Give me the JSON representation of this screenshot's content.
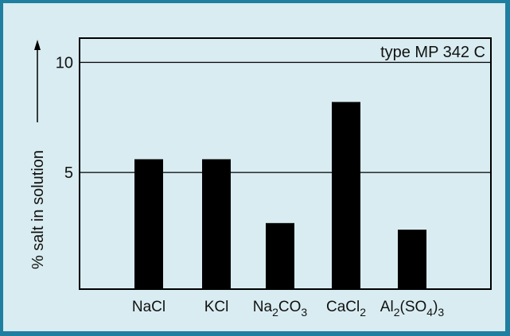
{
  "chart_data": {
    "type": "bar",
    "categories": [
      "NaCl",
      "KCl",
      "Na2CO3",
      "CaCl2",
      "Al2(SO4)3"
    ],
    "category_labels": [
      [
        {
          "t": "NaCl"
        }
      ],
      [
        {
          "t": "KCl"
        }
      ],
      [
        {
          "t": "Na"
        },
        {
          "t": "2",
          "sub": true
        },
        {
          "t": "CO"
        },
        {
          "t": "3",
          "sub": true
        }
      ],
      [
        {
          "t": "CaCl"
        },
        {
          "t": "2",
          "sub": true
        }
      ],
      [
        {
          "t": "Al"
        },
        {
          "t": "2",
          "sub": true
        },
        {
          "t": "(SO"
        },
        {
          "t": "4",
          "sub": true
        },
        {
          "t": ")"
        },
        {
          "t": "3",
          "sub": true
        }
      ]
    ],
    "values": [
      5.6,
      5.6,
      2.7,
      8.2,
      2.4
    ],
    "ylabel": "% salt in solution",
    "yticks": [
      5,
      10
    ],
    "ylim": [
      -0.3,
      11.1
    ],
    "gridlines": [
      5,
      10
    ],
    "annotation": "type MP 342 C",
    "bar_color": "#000000"
  }
}
